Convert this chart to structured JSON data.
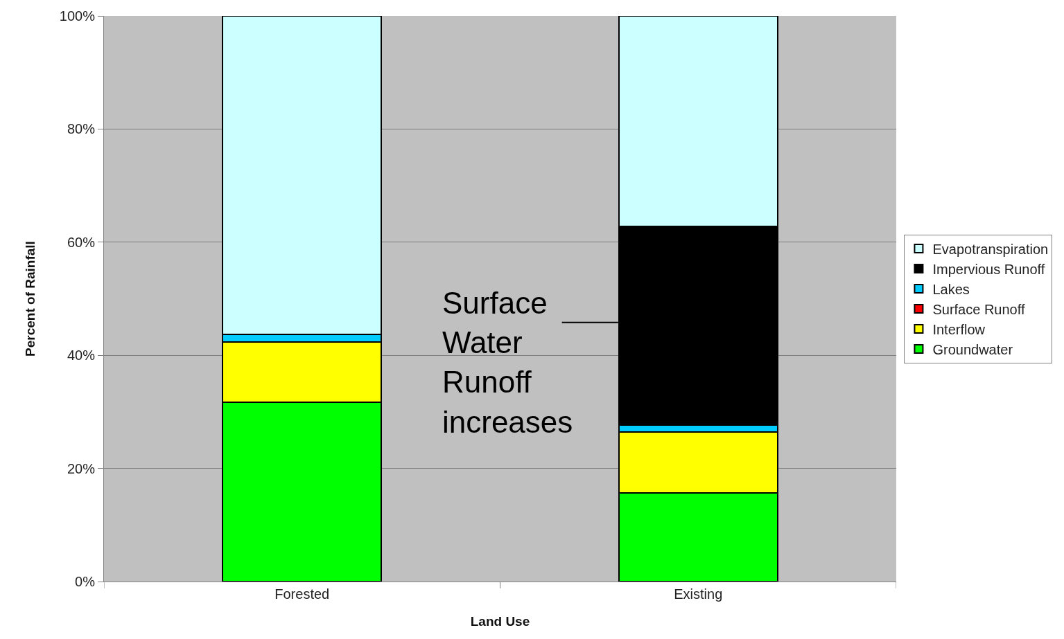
{
  "chart_data": {
    "type": "bar",
    "stacked": true,
    "xlabel": "Land Use",
    "ylabel": "Percent of Rainfall",
    "categories": [
      "Forested",
      "Existing"
    ],
    "series": [
      {
        "name": "Groundwater",
        "color": "#00ff00",
        "values": [
          31.7,
          15.7
        ]
      },
      {
        "name": "Interflow",
        "color": "#ffff00",
        "values": [
          10.7,
          10.8
        ]
      },
      {
        "name": "Surface Runoff",
        "color": "#ff0000",
        "values": [
          0,
          0
        ]
      },
      {
        "name": "Lakes",
        "color": "#00ccff",
        "values": [
          1.3,
          1.2
        ]
      },
      {
        "name": "Impervious Runoff",
        "color": "#000000",
        "values": [
          0,
          35.1
        ]
      },
      {
        "name": "Evapotranspiration",
        "color": "#ccffff",
        "values": [
          56.3,
          37.2
        ]
      }
    ],
    "ylim": [
      0,
      100
    ],
    "yticks": [
      {
        "value": 0,
        "label": "0%"
      },
      {
        "value": 20,
        "label": "20%"
      },
      {
        "value": 40,
        "label": "40%"
      },
      {
        "value": 60,
        "label": "60%"
      },
      {
        "value": 80,
        "label": "80%"
      },
      {
        "value": 100,
        "label": "100%"
      }
    ],
    "grid": "y",
    "legend": "right",
    "annotations": [
      "Surface\nWater\nRunoff\nincreases"
    ]
  }
}
